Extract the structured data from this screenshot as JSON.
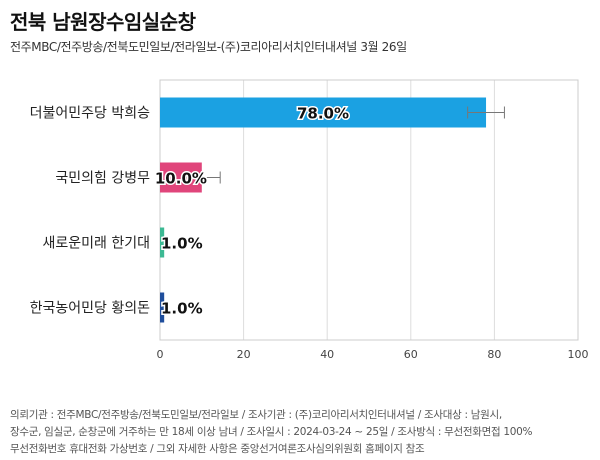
{
  "title": "전북 남원장수임실순창",
  "subtitle": "전주MBC/전주방송/전북도민일보/전라일보-(주)코리아리서치인터내셔널 3월 26일",
  "footnote": [
    "의뢰기관 : 전주MBC/전주방송/전북도민일보/전라일보 / 조사기관 : (주)코리아리서치인터내셔널 / 조사대상 : 남원시,",
    "장수군, 임실군, 순창군에 거주하는 만 18세 이상 남녀 / 조사일시 : 2024-03-24 ~ 25일 / 조사방식 : 무선전화면접 100%",
    "무선전화번호 휴대전화 가상번호 / 그외 자세한 사항은 중앙선거여론조사심의위원회 홈페이지 참조"
  ],
  "chart_data": {
    "type": "bar",
    "orientation": "horizontal",
    "categories": [
      "더불어민주당 박희승",
      "국민의힘 강병무",
      "새로운미래 한기대",
      "한국농어민당 황의돈"
    ],
    "values": [
      78.0,
      10.0,
      1.0,
      1.0
    ],
    "value_labels": [
      "78.0%",
      "10.0%",
      "1.0%",
      "1.0%"
    ],
    "error_margin": [
      4.4,
      4.4,
      0,
      0
    ],
    "colors": [
      "#1ba1e2",
      "#e0457b",
      "#3cb993",
      "#1f4e9c"
    ],
    "xlim": [
      0,
      100
    ],
    "xticks": [
      "0",
      "20",
      "40",
      "60",
      "80",
      "100"
    ],
    "grid": true
  }
}
